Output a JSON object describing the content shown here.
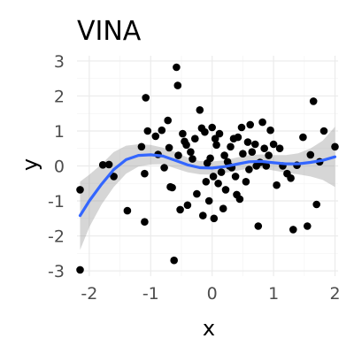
{
  "chart_data": {
    "type": "scatter",
    "title": "VINA",
    "xlabel": "x",
    "ylabel": "y",
    "xlim": [
      -2.2,
      2.05
    ],
    "ylim": [
      -3.15,
      3.15
    ],
    "x_ticks": [
      -2,
      -1,
      0,
      1,
      2
    ],
    "y_ticks": [
      -3,
      -2,
      -1,
      0,
      1,
      2,
      3
    ],
    "grid": true,
    "legend": "none",
    "points": [
      [
        -2.15,
        -0.68
      ],
      [
        -2.15,
        -2.97
      ],
      [
        -1.78,
        0.03
      ],
      [
        -1.68,
        0.04
      ],
      [
        -1.6,
        -0.3
      ],
      [
        -1.38,
        -1.28
      ],
      [
        -1.15,
        0.55
      ],
      [
        -1.1,
        -0.22
      ],
      [
        -1.1,
        -1.6
      ],
      [
        -1.08,
        1.95
      ],
      [
        -1.05,
        1.0
      ],
      [
        -0.92,
        0.85
      ],
      [
        -0.88,
        0.33
      ],
      [
        -0.82,
        1.02
      ],
      [
        -0.78,
        -0.05
      ],
      [
        -0.72,
        1.3
      ],
      [
        -0.7,
        0.52
      ],
      [
        -0.68,
        -0.6
      ],
      [
        -0.65,
        -0.62
      ],
      [
        -0.62,
        -2.7
      ],
      [
        -0.58,
        2.82
      ],
      [
        -0.56,
        2.3
      ],
      [
        -0.55,
        0.3
      ],
      [
        -0.52,
        -1.25
      ],
      [
        -0.48,
        0.92
      ],
      [
        -0.45,
        0.7
      ],
      [
        -0.42,
        0.6
      ],
      [
        -0.4,
        -1.12
      ],
      [
        -0.35,
        0.4
      ],
      [
        -0.32,
        0.2
      ],
      [
        -0.28,
        0.78
      ],
      [
        -0.25,
        -0.8
      ],
      [
        -0.2,
        1.6
      ],
      [
        -0.17,
        1.08
      ],
      [
        -0.15,
        -1.42
      ],
      [
        -0.12,
        0.97
      ],
      [
        -0.1,
        -0.45
      ],
      [
        -0.08,
        0.08
      ],
      [
        -0.05,
        -1.0
      ],
      [
        -0.03,
        0.22
      ],
      [
        0.0,
        1.1
      ],
      [
        0.02,
        -0.3
      ],
      [
        0.03,
        -1.5
      ],
      [
        0.05,
        0.78
      ],
      [
        0.07,
        0.6
      ],
      [
        0.1,
        -0.5
      ],
      [
        0.12,
        0.92
      ],
      [
        0.15,
        -0.18
      ],
      [
        0.18,
        -1.22
      ],
      [
        0.2,
        0.3
      ],
      [
        0.22,
        -0.68
      ],
      [
        0.25,
        0.12
      ],
      [
        0.28,
        0.0
      ],
      [
        0.3,
        0.55
      ],
      [
        0.32,
        -0.05
      ],
      [
        0.35,
        0.78
      ],
      [
        0.38,
        -0.3
      ],
      [
        0.4,
        -0.82
      ],
      [
        0.42,
        0.82
      ],
      [
        0.45,
        -0.95
      ],
      [
        0.48,
        1.1
      ],
      [
        0.5,
        0.35
      ],
      [
        0.55,
        -0.45
      ],
      [
        0.58,
        0.68
      ],
      [
        0.6,
        -0.1
      ],
      [
        0.62,
        1.18
      ],
      [
        0.65,
        0.4
      ],
      [
        0.7,
        0.62
      ],
      [
        0.72,
        0.0
      ],
      [
        0.75,
        -1.72
      ],
      [
        0.78,
        0.1
      ],
      [
        0.82,
        1.25
      ],
      [
        0.85,
        0.5
      ],
      [
        0.88,
        0.0
      ],
      [
        0.92,
        0.3
      ],
      [
        0.95,
        1.02
      ],
      [
        1.0,
        0.62
      ],
      [
        1.05,
        -0.55
      ],
      [
        1.1,
        0.5
      ],
      [
        1.15,
        0.0
      ],
      [
        1.22,
        -0.22
      ],
      [
        1.28,
        -0.35
      ],
      [
        1.32,
        -1.82
      ],
      [
        1.38,
        0.02
      ],
      [
        1.48,
        0.82
      ],
      [
        1.55,
        -1.72
      ],
      [
        1.6,
        0.32
      ],
      [
        1.65,
        1.85
      ],
      [
        1.7,
        -1.1
      ],
      [
        1.75,
        0.12
      ],
      [
        1.82,
        1.0
      ],
      [
        2.0,
        0.55
      ]
    ],
    "smooth_line": [
      [
        -2.15,
        -1.42
      ],
      [
        -2.0,
        -1.0
      ],
      [
        -1.8,
        -0.52
      ],
      [
        -1.6,
        -0.1
      ],
      [
        -1.4,
        0.18
      ],
      [
        -1.2,
        0.3
      ],
      [
        -1.0,
        0.32
      ],
      [
        -0.8,
        0.28
      ],
      [
        -0.6,
        0.16
      ],
      [
        -0.4,
        0.03
      ],
      [
        -0.2,
        -0.05
      ],
      [
        0.0,
        -0.06
      ],
      [
        0.2,
        -0.02
      ],
      [
        0.4,
        0.05
      ],
      [
        0.6,
        0.12
      ],
      [
        0.8,
        0.13
      ],
      [
        1.0,
        0.09
      ],
      [
        1.2,
        0.06
      ],
      [
        1.4,
        0.06
      ],
      [
        1.6,
        0.1
      ],
      [
        1.8,
        0.16
      ],
      [
        2.0,
        0.26
      ]
    ],
    "confidence_band": [
      [
        -2.15,
        -2.4,
        -0.45
      ],
      [
        -2.0,
        -1.75,
        -0.25
      ],
      [
        -1.8,
        -1.1,
        0.05
      ],
      [
        -1.6,
        -0.6,
        0.4
      ],
      [
        -1.4,
        -0.22,
        0.58
      ],
      [
        -1.2,
        -0.02,
        0.62
      ],
      [
        -1.0,
        0.04,
        0.6
      ],
      [
        -0.8,
        0.05,
        0.52
      ],
      [
        -0.6,
        -0.07,
        0.4
      ],
      [
        -0.4,
        -0.18,
        0.24
      ],
      [
        -0.2,
        -0.24,
        0.14
      ],
      [
        0.0,
        -0.25,
        0.13
      ],
      [
        0.2,
        -0.2,
        0.16
      ],
      [
        0.4,
        -0.14,
        0.24
      ],
      [
        0.6,
        -0.07,
        0.31
      ],
      [
        0.8,
        -0.07,
        0.33
      ],
      [
        1.0,
        -0.13,
        0.31
      ],
      [
        1.2,
        -0.19,
        0.31
      ],
      [
        1.4,
        -0.24,
        0.36
      ],
      [
        1.6,
        -0.3,
        0.5
      ],
      [
        1.8,
        -0.4,
        0.72
      ],
      [
        2.0,
        -0.6,
        1.12
      ]
    ],
    "colors": {
      "points": "#000000",
      "line": "#3366ff",
      "band": "#999999",
      "grid": "#ebebeb",
      "tick_text": "#4d4d4d"
    }
  }
}
